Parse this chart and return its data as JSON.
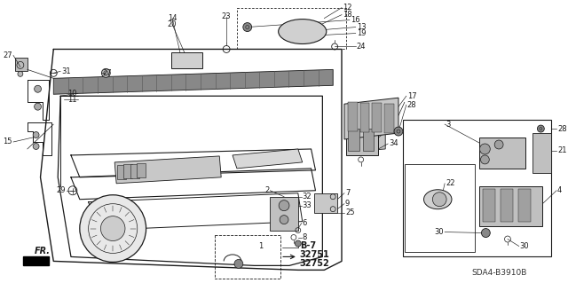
{
  "bg_color": "#ffffff",
  "line_color": "#1a1a1a",
  "text_color": "#1a1a1a",
  "diagram_code": "SDA4-B3910B",
  "fr_label": "FR.",
  "b7_label": "B-7",
  "part1": "32751",
  "part2": "32752",
  "figsize": [
    6.4,
    3.19
  ],
  "dpi": 100
}
